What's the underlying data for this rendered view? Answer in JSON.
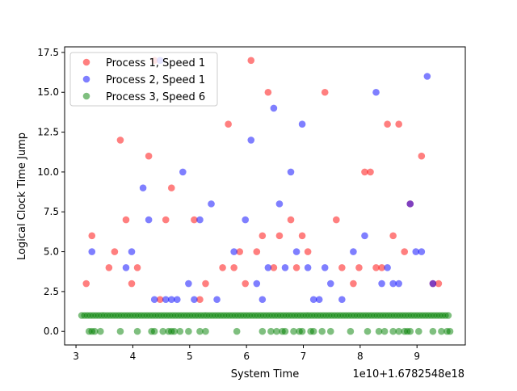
{
  "chart_data": {
    "type": "scatter",
    "title": "",
    "xlabel": "System Time",
    "ylabel": "Logical Clock Time Jump",
    "x_offset_label": "1e10+1.6782548e18",
    "xlim": [
      2.8,
      9.85
    ],
    "ylim": [
      -0.85,
      17.85
    ],
    "xticks": [
      3,
      4,
      5,
      6,
      7,
      8,
      9
    ],
    "xtick_labels": [
      "3",
      "4",
      "5",
      "6",
      "7",
      "8",
      "9"
    ],
    "yticks": [
      0,
      2.5,
      5,
      7.5,
      10,
      12.5,
      15,
      17.5
    ],
    "ytick_labels": [
      "0.0",
      "2.5",
      "5.0",
      "7.5",
      "10.0",
      "12.5",
      "15.0",
      "17.5"
    ],
    "grid": false,
    "legend_position": "top-left",
    "series": [
      {
        "name": "Process 1, Speed 1",
        "color": "#ff0000",
        "points": [
          [
            3.18,
            3
          ],
          [
            3.28,
            6
          ],
          [
            3.58,
            4
          ],
          [
            3.68,
            5
          ],
          [
            3.78,
            12
          ],
          [
            3.88,
            7
          ],
          [
            3.98,
            3
          ],
          [
            4.08,
            4
          ],
          [
            4.28,
            11
          ],
          [
            4.38,
            17
          ],
          [
            4.48,
            2
          ],
          [
            4.58,
            7
          ],
          [
            4.68,
            9
          ],
          [
            5.08,
            7
          ],
          [
            5.18,
            2
          ],
          [
            5.28,
            3
          ],
          [
            5.58,
            4
          ],
          [
            5.68,
            13
          ],
          [
            5.78,
            4
          ],
          [
            5.88,
            5
          ],
          [
            5.98,
            3
          ],
          [
            6.08,
            17
          ],
          [
            6.18,
            5
          ],
          [
            6.28,
            6
          ],
          [
            6.38,
            15
          ],
          [
            6.48,
            4
          ],
          [
            6.58,
            6
          ],
          [
            6.78,
            7
          ],
          [
            6.88,
            4
          ],
          [
            6.98,
            6
          ],
          [
            7.08,
            5
          ],
          [
            7.38,
            15
          ],
          [
            7.58,
            7
          ],
          [
            7.68,
            4
          ],
          [
            7.88,
            3
          ],
          [
            7.98,
            4
          ],
          [
            8.08,
            10
          ],
          [
            8.18,
            10
          ],
          [
            8.28,
            4
          ],
          [
            8.38,
            4
          ],
          [
            8.48,
            13
          ],
          [
            8.58,
            6
          ],
          [
            8.68,
            13
          ],
          [
            8.78,
            5
          ],
          [
            8.88,
            8
          ],
          [
            9.08,
            11
          ],
          [
            9.28,
            3
          ],
          [
            9.38,
            3
          ]
        ]
      },
      {
        "name": "Process 2, Speed 1",
        "color": "#0000ff",
        "points": [
          [
            3.28,
            5
          ],
          [
            3.88,
            4
          ],
          [
            3.98,
            5
          ],
          [
            4.18,
            9
          ],
          [
            4.28,
            7
          ],
          [
            4.38,
            2
          ],
          [
            4.48,
            17
          ],
          [
            4.58,
            2
          ],
          [
            4.68,
            2
          ],
          [
            4.78,
            2
          ],
          [
            4.88,
            10
          ],
          [
            4.98,
            3
          ],
          [
            5.08,
            2
          ],
          [
            5.18,
            7
          ],
          [
            5.38,
            8
          ],
          [
            5.48,
            2
          ],
          [
            5.78,
            5
          ],
          [
            5.98,
            7
          ],
          [
            6.08,
            12
          ],
          [
            6.18,
            3
          ],
          [
            6.28,
            2
          ],
          [
            6.38,
            4
          ],
          [
            6.48,
            14
          ],
          [
            6.58,
            8
          ],
          [
            6.68,
            4
          ],
          [
            6.78,
            10
          ],
          [
            6.88,
            5
          ],
          [
            6.98,
            13
          ],
          [
            7.08,
            4
          ],
          [
            7.18,
            2
          ],
          [
            7.28,
            2
          ],
          [
            7.38,
            4
          ],
          [
            7.48,
            3
          ],
          [
            7.68,
            2
          ],
          [
            7.88,
            5
          ],
          [
            8.08,
            6
          ],
          [
            8.28,
            15
          ],
          [
            8.38,
            3
          ],
          [
            8.48,
            4
          ],
          [
            8.58,
            3
          ],
          [
            8.68,
            3
          ],
          [
            8.88,
            8
          ],
          [
            8.98,
            5
          ],
          [
            9.08,
            5
          ],
          [
            9.18,
            16
          ],
          [
            9.28,
            3
          ]
        ]
      },
      {
        "name": "Process 3, Speed 6",
        "color": "#008000",
        "points_zero": [
          3.23,
          3.28,
          3.33,
          3.43,
          3.78,
          4.08,
          4.33,
          4.38,
          4.53,
          4.63,
          4.68,
          4.73,
          4.83,
          4.98,
          5.18,
          5.28,
          5.83,
          6.28,
          6.43,
          6.53,
          6.63,
          6.68,
          6.83,
          6.93,
          6.98,
          7.13,
          7.18,
          7.33,
          7.48,
          7.83,
          8.13,
          8.33,
          8.43,
          8.58,
          8.68,
          8.78,
          8.83,
          8.88,
          9.03,
          9.28,
          9.43,
          9.53,
          9.58
        ],
        "one_start": 3.1,
        "one_end": 9.55,
        "one_step": 0.05,
        "y_one": 1,
        "y_zero": 0
      }
    ]
  }
}
